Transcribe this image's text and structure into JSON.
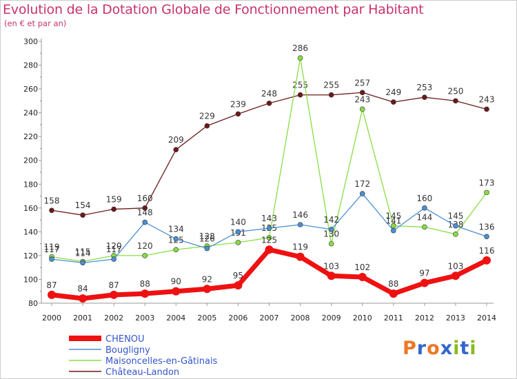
{
  "title": "Evolution de la Dotation Globale de Fonctionnement par Habitant",
  "subtitle": "(en € et par an)",
  "logo": {
    "letters": [
      "P",
      "r",
      "o",
      "x",
      "i",
      "t",
      "i"
    ],
    "colors": [
      "#ee7722",
      "#3366cc",
      "#ee7722",
      "#3366cc",
      "#88bb22",
      "#3366cc",
      "#88bb22"
    ]
  },
  "chart_data": {
    "type": "line",
    "x": [
      2000,
      2001,
      2002,
      2003,
      2004,
      2005,
      2006,
      2007,
      2008,
      2009,
      2010,
      2011,
      2012,
      2013,
      2014
    ],
    "ylim": [
      80,
      300
    ],
    "yticks": [
      80,
      100,
      120,
      140,
      160,
      180,
      200,
      220,
      240,
      260,
      280,
      300
    ],
    "grid": false,
    "legend_position": "bottom-left",
    "series": [
      {
        "name": "CHENOU",
        "color": "#ee1111",
        "values": [
          87,
          84,
          87,
          88,
          90,
          92,
          95,
          125,
          119,
          103,
          102,
          88,
          97,
          103,
          116
        ]
      },
      {
        "name": "Bougligny",
        "color": "#4a8fd0",
        "values": [
          117,
          114,
          117,
          148,
          134,
          126,
          140,
          143,
          146,
          142,
          172,
          141,
          160,
          145,
          136
        ]
      },
      {
        "name": "Maisoncelles-en-Gâtinais",
        "color": "#88dd44",
        "values": [
          119,
          115,
          120,
          120,
          125,
          128,
          131,
          135,
          286,
          130,
          243,
          145,
          144,
          138,
          173
        ]
      },
      {
        "name": "Château-Landon",
        "color": "#6b1a1a",
        "values": [
          158,
          154,
          159,
          160,
          209,
          229,
          239,
          248,
          255,
          255,
          257,
          249,
          253,
          250,
          243
        ]
      }
    ]
  }
}
